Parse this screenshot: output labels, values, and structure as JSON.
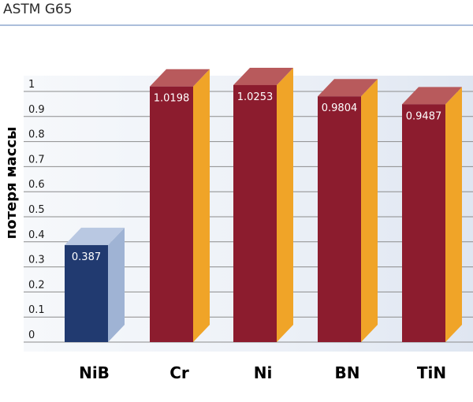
{
  "header": {
    "title": "ASTM G65"
  },
  "chart_data": {
    "type": "bar",
    "title": "ASTM G65",
    "xlabel": "",
    "ylabel": "потеря массы",
    "categories": [
      "NiB",
      "Cr",
      "Ni",
      "BN",
      "TiN"
    ],
    "values": [
      0.387,
      1.0198,
      1.0253,
      0.9804,
      0.9487
    ],
    "value_labels": [
      "0.387",
      "1.0198",
      "1.0253",
      "0.9804",
      "0.9487"
    ],
    "ylim": [
      0,
      1.0
    ],
    "yticks": [
      "0",
      "0.1",
      "0.2",
      "0.3",
      "0.4",
      "0.5",
      "0.6",
      "0.7",
      "0.8",
      "0.9",
      "1"
    ],
    "grid": true,
    "bar_style": "3d",
    "colors": {
      "highlight_front": "#213a70",
      "highlight_side": "#9fb3d4",
      "highlight_top": "#b9c8e2",
      "default_front": "#8c1c2e",
      "default_side": "#f0a428",
      "default_top": "#b85a5c",
      "grid": "#8c8c8c",
      "background_panel": "#eaeff7",
      "header_rule": "#8fa9cf"
    },
    "highlight_category": "NiB"
  }
}
